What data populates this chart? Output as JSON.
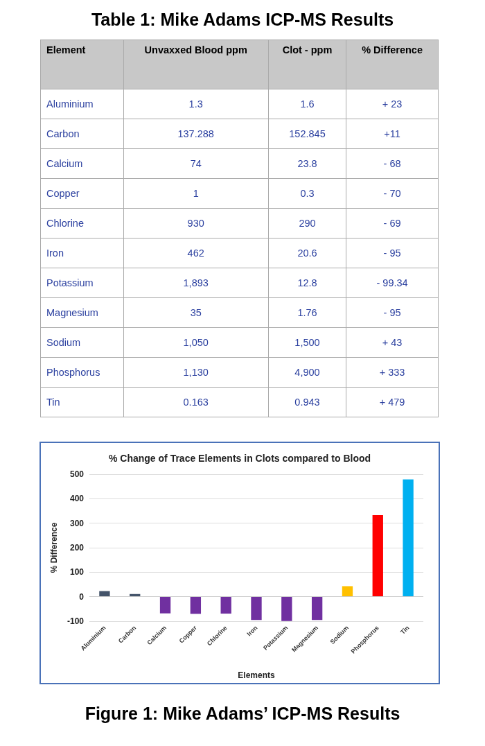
{
  "chart_data": [
    {
      "type": "heatmap",
      "title": "Table 1: Mike Adams ICP-MS Results",
      "xlabel": "Element",
      "categories": [
        "Unvaxxed Blood ppm",
        "Clot - ppm",
        "% Difference"
      ],
      "y_categories": [
        "Aluminium",
        "Carbon",
        "Calcium",
        "Copper",
        "Chlorine",
        "Iron",
        "Potassium",
        "Magnesium",
        "Sodium",
        "Phosphorus",
        "Tin"
      ],
      "cells": [
        [
          1.3,
          1.6,
          23
        ],
        [
          137.288,
          152.845,
          11
        ],
        [
          74,
          23.8,
          -68
        ],
        [
          1,
          0.3,
          -70
        ],
        [
          930,
          290,
          -69
        ],
        [
          462,
          20.6,
          -95
        ],
        [
          1893,
          12.8,
          -99.34
        ],
        [
          35,
          1.76,
          -95
        ],
        [
          1050,
          1500,
          43
        ],
        [
          1130,
          4900,
          333
        ],
        [
          0.163,
          0.943,
          479
        ]
      ],
      "cell_labels": [
        [
          "1.3",
          "1.6",
          "+ 23"
        ],
        [
          "137.288",
          "152.845",
          "+11"
        ],
        [
          "74",
          "23.8",
          "- 68"
        ],
        [
          "1",
          "0.3",
          "- 70"
        ],
        [
          "930",
          "290",
          "- 69"
        ],
        [
          "462",
          "20.6",
          "- 95"
        ],
        [
          "1,893",
          "12.8",
          "- 99.34"
        ],
        [
          "35",
          "1.76",
          "- 95"
        ],
        [
          "1,050",
          "1,500",
          "+ 43"
        ],
        [
          "1,130",
          "4,900",
          "+ 333"
        ],
        [
          "0.163",
          "0.943",
          "+ 479"
        ]
      ]
    },
    {
      "type": "bar",
      "title": "% Change of Trace Elements in Clots compared to Blood",
      "xlabel": "Elements",
      "ylabel": "% Difference",
      "categories": [
        "Aluminium",
        "Carbon",
        "Calcium",
        "Copper",
        "Chlorine",
        "Iron",
        "Potassium",
        "Magnesium",
        "Sodium",
        "Phosphorus",
        "Tin"
      ],
      "values": [
        23,
        11,
        -68,
        -70,
        -69,
        -95,
        -99.34,
        -95,
        43,
        333,
        479
      ],
      "colors": [
        "#44546a",
        "#44546a",
        "#7030a0",
        "#7030a0",
        "#7030a0",
        "#7030a0",
        "#7030a0",
        "#7030a0",
        "#ffc000",
        "#ff0000",
        "#00b0f0"
      ],
      "ylim": [
        -100,
        500
      ],
      "yticks": [
        -100,
        0,
        100,
        200,
        300,
        400,
        500
      ],
      "grid": "y",
      "annotations": [
        "Figure 1: Mike Adams’ ICP-MS Results"
      ]
    }
  ]
}
